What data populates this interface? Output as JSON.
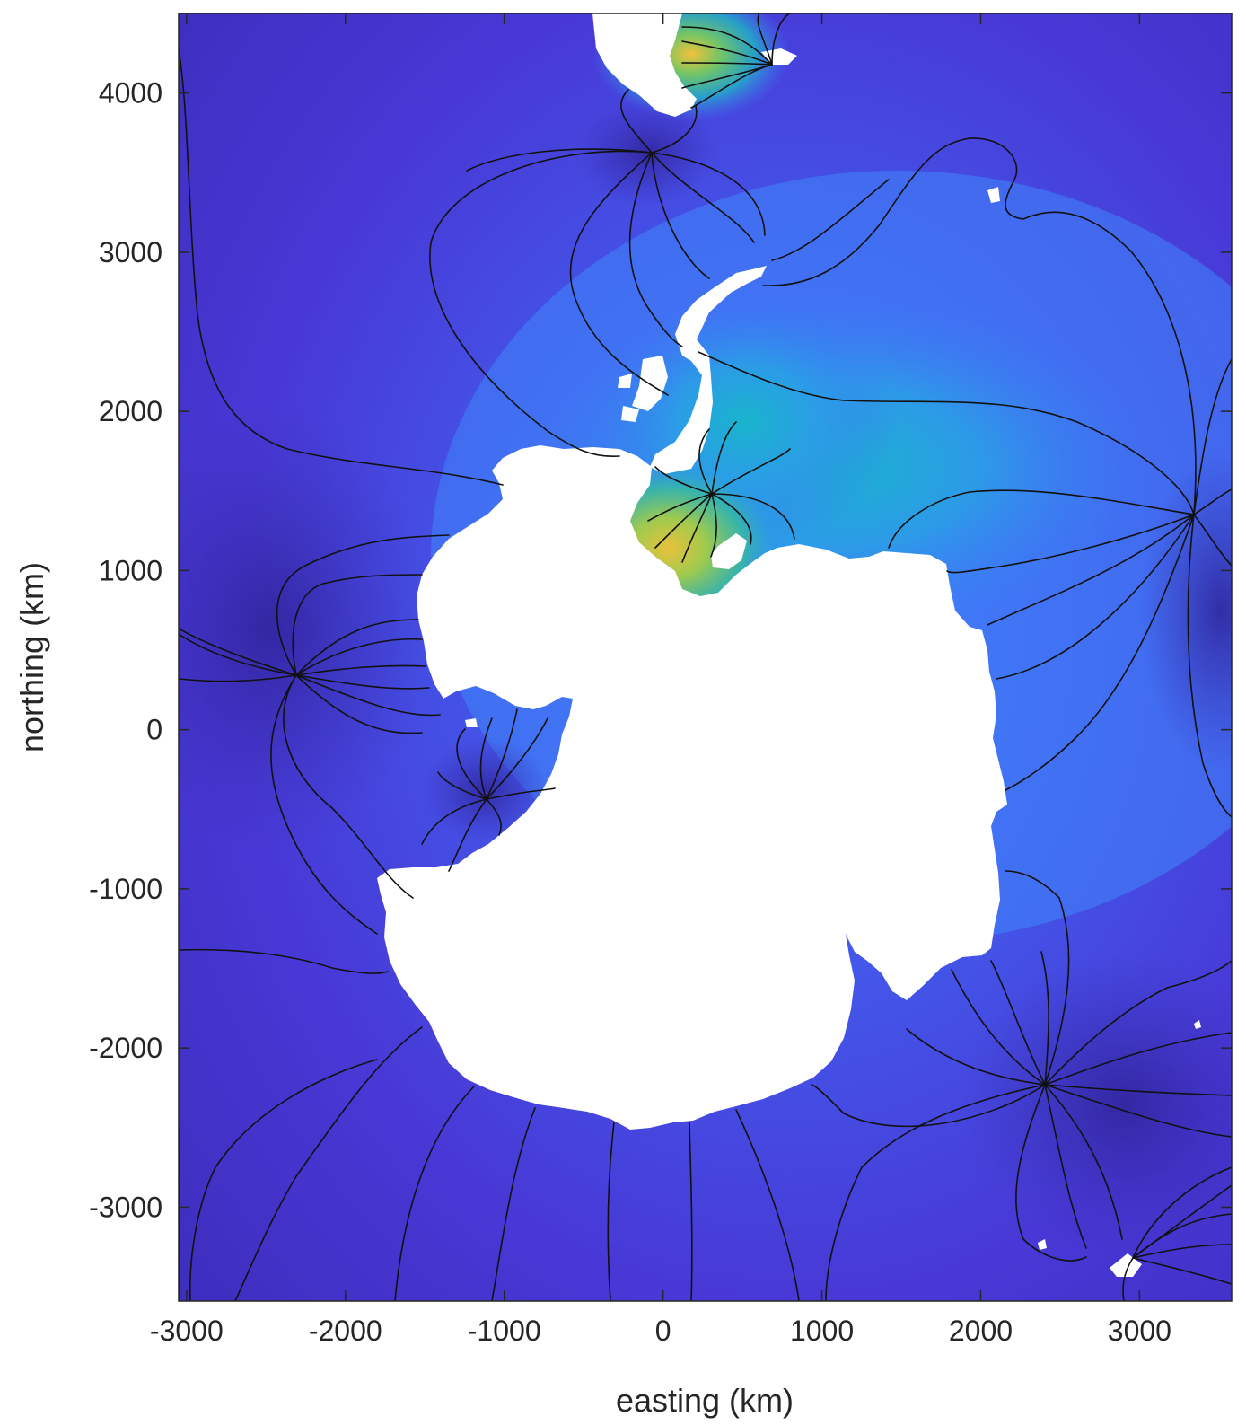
{
  "figure": {
    "xlabel": "easting (km)",
    "ylabel": "northing (km)",
    "xlim": [
      -3050,
      3580
    ],
    "ylim": [
      -3590,
      4500
    ],
    "xticks": [
      -3000,
      -2000,
      -1000,
      0,
      1000,
      2000,
      3000
    ],
    "yticks": [
      -3000,
      -2000,
      -1000,
      0,
      1000,
      2000,
      3000,
      4000
    ],
    "xtick_labels": [
      "-3000",
      "-2000",
      "-1000",
      "0",
      "1000",
      "2000",
      "3000"
    ],
    "ytick_labels": [
      "-3000",
      "-2000",
      "-1000",
      "0",
      "1000",
      "2000",
      "3000",
      "4000"
    ],
    "projection": "polar stereographic, south pole",
    "colormap": "parula",
    "colors": {
      "background_field": "#4a3fd8",
      "deep_field": "#3a2fb5",
      "mid_field": "#3d7df7",
      "cyan_field": "#1fb3c9",
      "green_field": "#6cc46a",
      "yellow_field": "#f5c437",
      "land": "#ffffff",
      "contour": "#111111"
    }
  },
  "chart_data": {
    "type": "heatmap",
    "xlabel": "easting (km)",
    "ylabel": "northing (km)",
    "xlim": [
      -3050,
      3580
    ],
    "ylim": [
      -3590,
      4500
    ],
    "grid": false,
    "field_maxima": [
      {
        "x": 100,
        "y": 1000,
        "level": "high"
      },
      {
        "x": 150,
        "y": 4300,
        "level": "high"
      }
    ],
    "convergence_points": [
      {
        "x": 0,
        "y": 3620
      },
      {
        "x": 380,
        "y": 1420
      },
      {
        "x": 3480,
        "y": 1290
      },
      {
        "x": -2290,
        "y": 270
      },
      {
        "x": -1070,
        "y": -530
      },
      {
        "x": 2520,
        "y": -2340
      },
      {
        "x": 3080,
        "y": -3450
      },
      {
        "x": 750,
        "y": 4160
      }
    ]
  }
}
